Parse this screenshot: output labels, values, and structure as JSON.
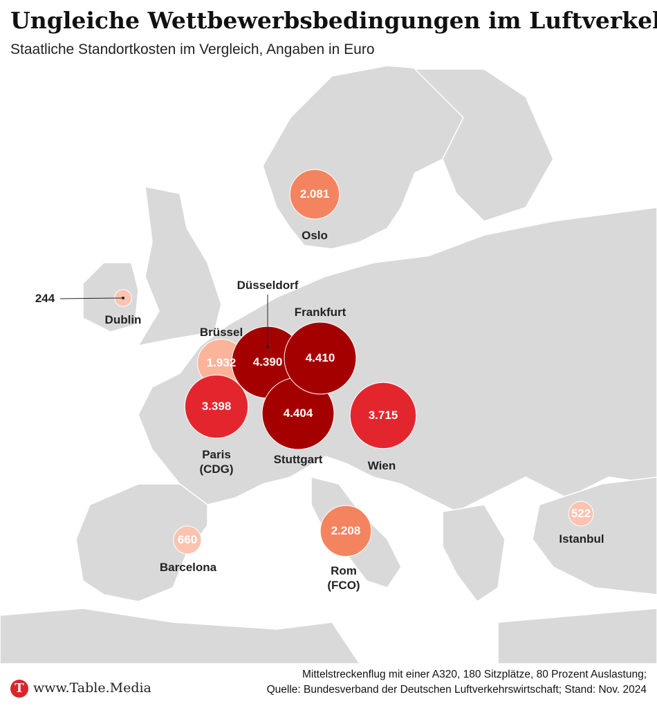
{
  "chart_data": {
    "type": "bubble_map",
    "title": "Ungleiche Wettbewerbsbedingungen im Luftverkehr",
    "subtitle": "Staatliche Standortkosten im Vergleich, Angaben in Euro",
    "categories": [
      "Oslo",
      "Dublin",
      "Brüssel",
      "Paris (CDG)",
      "Düsseldorf",
      "Stuttgart",
      "Frankfurt",
      "Wien",
      "Barcelona",
      "Rom (FCO)",
      "Istanbul"
    ],
    "values": [
      2081,
      244,
      1932,
      3398,
      4390,
      4404,
      4410,
      3715,
      660,
      2208,
      522
    ],
    "value_labels": [
      "2.081",
      "244",
      "1.932",
      "3.398",
      "4.390",
      "4.404",
      "4.410",
      "3.715",
      "660",
      "2.208",
      "522"
    ],
    "colors": [
      "#f4845f",
      "#fcc3b0",
      "#fbb39a",
      "#e3262d",
      "#a50000",
      "#a50000",
      "#a50000",
      "#e3262d",
      "#fcc3b0",
      "#f4845f",
      "#fcc3b0"
    ],
    "brand": "www.Table.Media",
    "note": "Mittelstreckenflug mit einer A320, 180 Sitzplätze, 80 Prozent Auslastung;",
    "source": "Quelle: Bundesverband der Deutschen Luftverkehrswirtschaft; Stand: Nov. 2024"
  }
}
